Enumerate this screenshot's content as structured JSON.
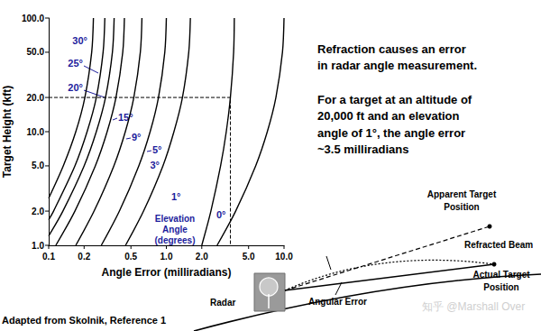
{
  "chart_data": {
    "type": "line",
    "log": true,
    "grid": false,
    "marker": "none",
    "color": "#000000",
    "xlabel": "Angle Error (milliradians)",
    "ylabel": "Target Height (kft)",
    "xlim": [
      0.1,
      10
    ],
    "ylim": [
      1,
      100
    ],
    "xticks": [
      0.1,
      0.2,
      0.5,
      {
        "value": 1,
        "label": "1.0"
      },
      {
        "value": 2,
        "label": "2.0"
      },
      {
        "value": 5,
        "label": "5.0"
      },
      {
        "value": 10,
        "label": "10.0"
      }
    ],
    "yticks": [
      {
        "value": 1,
        "label": "1.0"
      },
      {
        "value": 2,
        "label": "2.0"
      },
      {
        "value": 5,
        "label": "5.0"
      },
      {
        "value": 10,
        "label": "10.0"
      },
      {
        "value": 20,
        "label": "20.0"
      },
      {
        "value": 50,
        "label": "50.0"
      },
      {
        "value": 100,
        "label": "100.0"
      }
    ],
    "curve_label_title": [
      "Elevation",
      "Angle",
      "(degrees)"
    ],
    "series": [
      {
        "name": "30°",
        "x": [
          0.1,
          0.133,
          0.17,
          0.203,
          0.232,
          0.24
        ],
        "values": [
          2.6,
          5,
          10,
          20,
          50,
          100
        ]
      },
      {
        "name": "25°",
        "x": [
          0.1,
          0.11,
          0.167,
          0.212,
          0.254,
          0.29,
          0.3
        ],
        "values": [
          1.68,
          2,
          5,
          10,
          20,
          50,
          100
        ]
      },
      {
        "name": "20°",
        "x": [
          0.1,
          0.132,
          0.2,
          0.254,
          0.304,
          0.348,
          0.36
        ],
        "values": [
          1.21,
          2,
          5,
          10,
          20,
          50,
          100
        ]
      },
      {
        "name": "15°",
        "x": [
          0.115,
          0.167,
          0.249,
          0.314,
          0.373,
          0.426,
          0.44
        ],
        "values": [
          1,
          2,
          5,
          10,
          20,
          50,
          100
        ]
      },
      {
        "name": "9°",
        "x": [
          0.17,
          0.243,
          0.358,
          0.448,
          0.529,
          0.601,
          0.62
        ],
        "values": [
          1,
          2,
          5,
          10,
          20,
          50,
          100
        ]
      },
      {
        "name": "5°",
        "x": [
          0.28,
          0.399,
          0.583,
          0.728,
          0.857,
          0.97,
          1.0
        ],
        "values": [
          1,
          2,
          5,
          10,
          20,
          50,
          100
        ]
      },
      {
        "name": "3°",
        "x": [
          0.45,
          0.64,
          0.935,
          1.16,
          1.37,
          1.55,
          1.6
        ],
        "values": [
          1,
          2,
          5,
          10,
          20,
          50,
          100
        ]
      },
      {
        "name": "1°",
        "x": [
          2.0,
          2.39,
          2.89,
          3.23,
          3.5,
          3.73,
          3.78
        ],
        "values": [
          1,
          2,
          5,
          10,
          20,
          50,
          100
        ]
      },
      {
        "name": "0°",
        "x": [
          2.7,
          3.88,
          5.74,
          7.21,
          8.53,
          9.7,
          10
        ],
        "values": [
          1,
          2,
          5,
          10,
          20,
          50,
          100
        ]
      }
    ],
    "reference_point": {
      "x": 3.5,
      "y": 20,
      "line_style": "dashed"
    }
  },
  "annotations": {
    "text_blocks": [
      [
        "Refraction causes an error",
        "in radar angle measurement."
      ],
      [
        "For a target at an altitude of",
        "20,000 ft and an elevation",
        "angle of 1°, the angle error",
        "~3.5 milliradians"
      ]
    ],
    "diagram": {
      "apparent": [
        "Apparent Target",
        "Position"
      ],
      "beam": "Refracted Beam",
      "actual": [
        "Actual Target",
        "Position"
      ],
      "radar": "Radar",
      "angle": "Angular Error"
    },
    "source": "Adapted from Skolnik, Reference 1",
    "watermark": "知乎 @Marshall Over"
  }
}
